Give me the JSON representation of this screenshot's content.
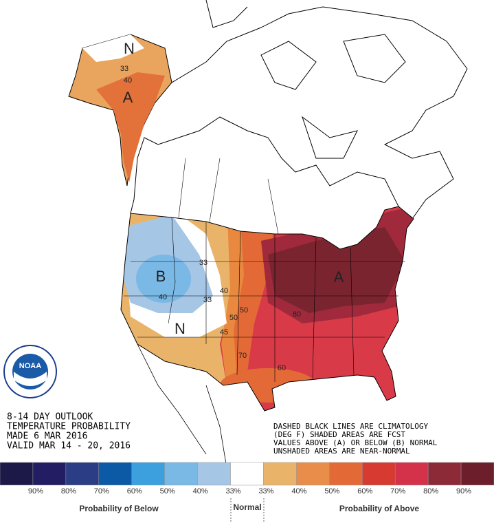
{
  "header": {
    "lines": [
      "8-14 DAY OUTLOOK",
      "TEMPERATURE PROBABILITY",
      "MADE  6 MAR 2016",
      "VALID  MAR 14 - 20, 2016"
    ]
  },
  "notes": [
    "DASHED BLACK LINES ARE CLIMATOLOGY",
    "(DEG F) SHADED AREAS ARE FCST",
    "VALUES ABOVE (A) OR BELOW (B) NORMAL",
    "UNSHADED AREAS ARE NEAR-NORMAL"
  ],
  "logo": {
    "name": "NOAA"
  },
  "map": {
    "labels": [
      "N",
      "A",
      "B",
      "N",
      "A"
    ],
    "contours": [
      "33",
      "40",
      "33",
      "40",
      "33",
      "40",
      "50",
      "50",
      "45",
      "70",
      "80",
      "60"
    ]
  },
  "legend": {
    "colors": [
      "#1c1848",
      "#231e63",
      "#2b3d85",
      "#0c5aa6",
      "#3da0de",
      "#7ab8e6",
      "#a6c6e6",
      "#ffffff",
      "#e9b36a",
      "#e98e4a",
      "#e36a36",
      "#d63a30",
      "#d4324a",
      "#8c2a38",
      "#6c1f2a"
    ],
    "labels": [
      "90%",
      "80%",
      "70%",
      "60%",
      "50%",
      "40%",
      "33%",
      "33%",
      "40%",
      "50%",
      "60%",
      "70%",
      "80%",
      "90%"
    ],
    "below": "Probability of Below",
    "normal": "Normal",
    "above": "Probability of Above"
  }
}
